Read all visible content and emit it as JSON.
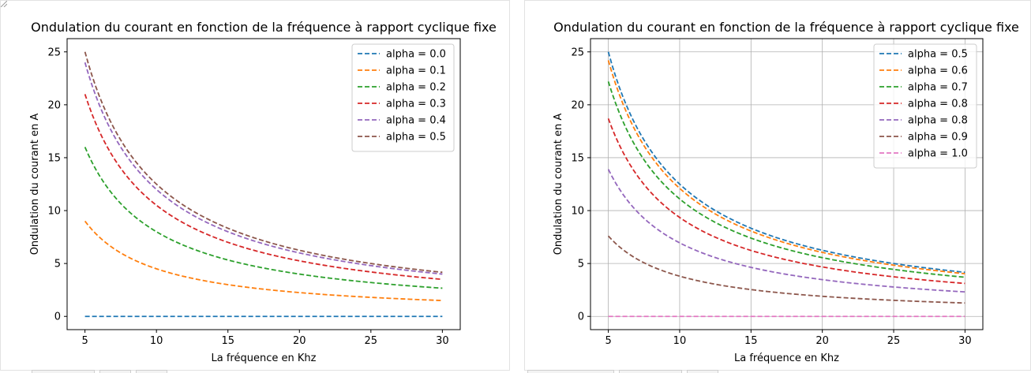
{
  "chart_data": [
    {
      "type": "line",
      "title": "Ondulation du courant en fonction de la fréquence à rapport cyclique fixe",
      "xlabel": "La fréquence en Khz",
      "ylabel": "Ondulation du courant en A",
      "xlim": [
        3.75,
        31.25
      ],
      "ylim": [
        -1.25,
        26.25
      ],
      "xticks": [
        5,
        10,
        15,
        20,
        25,
        30
      ],
      "yticks": [
        0,
        5,
        10,
        15,
        20,
        25
      ],
      "grid": false,
      "legend_position": "top-right",
      "line_style": "dashed",
      "model": "y = 500 * alpha * (1 - alpha) / x",
      "x": [
        5,
        6,
        7,
        8,
        10,
        12,
        15,
        20,
        25,
        30
      ],
      "series": [
        {
          "name": "alpha = 0.0",
          "color": "#1f77b4",
          "values": [
            0,
            0,
            0,
            0,
            0,
            0,
            0,
            0,
            0,
            0
          ]
        },
        {
          "name": "alpha = 0.1",
          "color": "#ff7f0e",
          "values": [
            9.0,
            7.5,
            6.43,
            5.63,
            4.5,
            3.75,
            3.0,
            2.25,
            1.8,
            1.5
          ]
        },
        {
          "name": "alpha = 0.2",
          "color": "#2ca02c",
          "values": [
            16.0,
            13.33,
            11.43,
            10.0,
            8.0,
            6.67,
            5.33,
            4.0,
            3.2,
            2.67
          ]
        },
        {
          "name": "alpha = 0.3",
          "color": "#d62728",
          "values": [
            21.0,
            17.5,
            15.0,
            13.13,
            10.5,
            8.75,
            7.0,
            5.25,
            4.2,
            3.5
          ]
        },
        {
          "name": "alpha = 0.4",
          "color": "#9467bd",
          "values": [
            24.0,
            20.0,
            17.14,
            15.0,
            12.0,
            10.0,
            8.0,
            6.0,
            4.8,
            4.0
          ]
        },
        {
          "name": "alpha = 0.5",
          "color": "#8c564b",
          "values": [
            25.0,
            20.83,
            17.86,
            15.63,
            12.5,
            10.42,
            8.33,
            6.25,
            5.0,
            4.17
          ]
        }
      ]
    },
    {
      "type": "line",
      "title": "Ondulation du courant en fonction de la fréquence à rapport cyclique fixe",
      "xlabel": "La fréquence en Khz",
      "ylabel": "Ondulation du courant en A",
      "xlim": [
        3.75,
        31.25
      ],
      "ylim": [
        -1.25,
        26.25
      ],
      "xticks": [
        5,
        10,
        15,
        20,
        25,
        30
      ],
      "yticks": [
        0,
        5,
        10,
        15,
        20,
        25
      ],
      "grid": true,
      "legend_position": "top-right",
      "line_style": "dashed",
      "x": [
        5,
        6,
        7,
        8,
        10,
        12,
        15,
        20,
        25,
        30
      ],
      "series": [
        {
          "name": "alpha = 0.5",
          "color": "#1f77b4",
          "values": [
            25.0,
            20.83,
            17.86,
            15.63,
            12.5,
            10.42,
            8.33,
            6.25,
            5.0,
            4.17
          ]
        },
        {
          "name": "alpha = 0.6",
          "color": "#ff7f0e",
          "values": [
            24.2,
            20.17,
            17.29,
            15.13,
            12.1,
            10.08,
            8.07,
            6.05,
            4.84,
            4.03
          ]
        },
        {
          "name": "alpha = 0.7",
          "color": "#2ca02c",
          "values": [
            22.2,
            18.5,
            15.86,
            13.88,
            11.1,
            9.25,
            7.4,
            5.55,
            4.44,
            3.7
          ]
        },
        {
          "name": "alpha = 0.8",
          "color": "#d62728",
          "values": [
            18.7,
            15.58,
            13.36,
            11.69,
            9.35,
            7.79,
            6.23,
            4.68,
            3.74,
            3.12
          ]
        },
        {
          "name": "alpha = 0.8",
          "color": "#9467bd",
          "values": [
            13.9,
            11.58,
            9.93,
            8.69,
            6.95,
            5.79,
            4.63,
            3.48,
            2.78,
            2.32
          ]
        },
        {
          "name": "alpha = 0.9",
          "color": "#8c564b",
          "values": [
            7.6,
            6.33,
            5.43,
            4.75,
            3.8,
            3.17,
            2.53,
            1.9,
            1.52,
            1.27
          ]
        },
        {
          "name": "alpha = 1.0",
          "color": "#e377c2",
          "values": [
            0,
            0,
            0,
            0,
            0,
            0,
            0,
            0,
            0,
            0
          ]
        }
      ]
    }
  ]
}
